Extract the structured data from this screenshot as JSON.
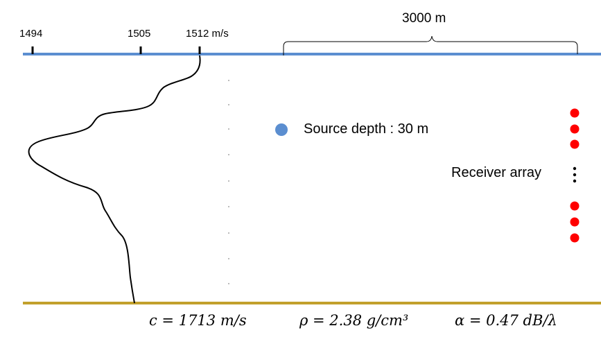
{
  "colors": {
    "surface": "#5b8ed0",
    "seabed": "#c2a02c",
    "source": "#5b8ed0",
    "receiver": "#ff0000",
    "profile": "#000000"
  },
  "sound_speed_axis": {
    "ticks": [
      "1494",
      "1505",
      "1512 m/s"
    ]
  },
  "range": {
    "label": "3000 m"
  },
  "source": {
    "label": "Source depth : 30 m",
    "icon": "circle"
  },
  "receiver": {
    "label": "Receiver array",
    "ellipsis": "⋮"
  },
  "bottom_parameters": {
    "c": "c = 1713 m/s",
    "rho": "ρ = 2.38 g/cm³",
    "alpha": "α = 0.47 dB/λ"
  }
}
